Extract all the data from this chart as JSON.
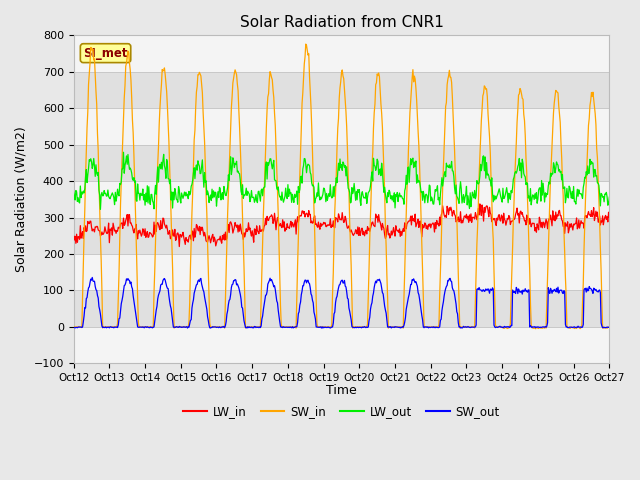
{
  "title": "Solar Radiation from CNR1",
  "xlabel": "Time",
  "ylabel": "Solar Radiation (W/m2)",
  "ylim": [
    -100,
    800
  ],
  "xlim": [
    0,
    360
  ],
  "xtick_labels": [
    "Oct 12",
    "Oct 13",
    "Oct 14",
    "Oct 15",
    "Oct 16",
    "Oct 17",
    "Oct 18",
    "Oct 19",
    "Oct 20",
    "Oct 21",
    "Oct 22",
    "Oct 23",
    "Oct 24",
    "Oct 25",
    "Oct 26",
    "Oct 27"
  ],
  "xtick_positions": [
    0,
    24,
    48,
    72,
    96,
    120,
    144,
    168,
    192,
    216,
    240,
    264,
    288,
    312,
    336,
    360
  ],
  "colors": {
    "LW_in": "#FF0000",
    "SW_in": "#FFA500",
    "LW_out": "#00EE00",
    "SW_out": "#0000FF"
  },
  "legend_labels": [
    "LW_in",
    "SW_in",
    "LW_out",
    "SW_out"
  ],
  "si_met_label": "SI_met",
  "figure_facecolor": "#E8E8E8",
  "plot_facecolor": "#FFFFFF",
  "band_dark": "#E0E0E0",
  "band_light": "#F4F4F4",
  "title_fontsize": 11,
  "axis_fontsize": 9,
  "tick_fontsize": 8
}
